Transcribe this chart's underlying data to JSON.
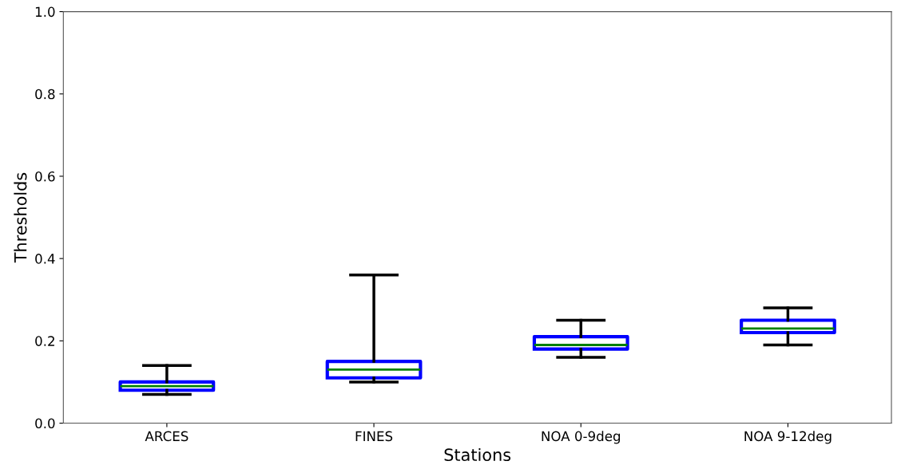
{
  "chart_data": {
    "type": "box",
    "xlabel": "Stations",
    "ylabel": "Thresholds",
    "categories": [
      "ARCES",
      "FINES",
      "NOA 0-9deg",
      "NOA 9-12deg"
    ],
    "series": [
      {
        "color": "#0000ff",
        "boxes": [
          {
            "low": 0.07,
            "q1": 0.08,
            "median": 0.09,
            "q3": 0.1,
            "high": 0.14
          },
          {
            "low": 0.1,
            "q1": 0.11,
            "median": 0.13,
            "q3": 0.15,
            "high": 0.36
          },
          {
            "low": 0.16,
            "q1": 0.18,
            "median": 0.19,
            "q3": 0.21,
            "high": 0.25
          },
          {
            "low": 0.19,
            "q1": 0.22,
            "median": 0.23,
            "q3": 0.25,
            "high": 0.28
          }
        ]
      }
    ],
    "ylim": [
      0.0,
      1.0
    ],
    "yticks": [
      {
        "value": 0,
        "label": "0.0"
      },
      {
        "value": 0.2,
        "label": "0.2"
      },
      {
        "value": 0.4,
        "label": "0.4"
      },
      {
        "value": 0.6,
        "label": "0.6"
      },
      {
        "value": 0.8,
        "label": "0.8"
      },
      {
        "value": 1.0,
        "label": "1.0"
      }
    ],
    "grid": false,
    "legend": false
  }
}
